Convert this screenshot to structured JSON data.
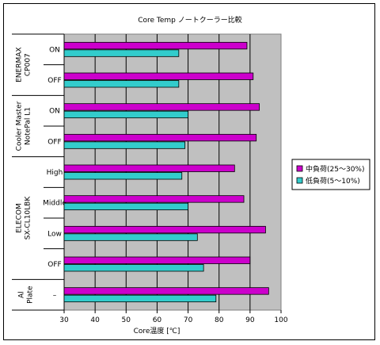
{
  "chart_data": {
    "type": "bar",
    "orientation": "horizontal",
    "title": "Core Temp ノートクーラー比較",
    "xlabel": "Core温度 [℃]",
    "ylabel": "",
    "xlim": [
      30,
      100
    ],
    "xticks": [
      30,
      40,
      50,
      60,
      70,
      80,
      90,
      100
    ],
    "grid": true,
    "plot_background": "#c0c0c0",
    "legend_position": "right",
    "groups": [
      {
        "name": "ENERMAX\nCP007",
        "categories": [
          "ON",
          "OFF"
        ]
      },
      {
        "name": "Cooler Master\nNotePal L1",
        "categories": [
          "ON",
          "OFF"
        ]
      },
      {
        "name": "ELECOM\nSX-CL10LBK",
        "categories": [
          "High",
          "Middle",
          "Low",
          "OFF"
        ]
      },
      {
        "name": "Al\nPlate",
        "categories": [
          "–"
        ]
      }
    ],
    "series": [
      {
        "name": "中負荷(25～30%)",
        "color": "#cc00cc",
        "values": [
          89,
          91,
          93,
          92,
          85,
          88,
          95,
          90,
          96
        ]
      },
      {
        "name": "低負荷(5～10%)",
        "color": "#33cccc",
        "values": [
          67,
          67,
          70,
          69,
          68,
          70,
          73,
          75,
          79
        ]
      }
    ]
  }
}
